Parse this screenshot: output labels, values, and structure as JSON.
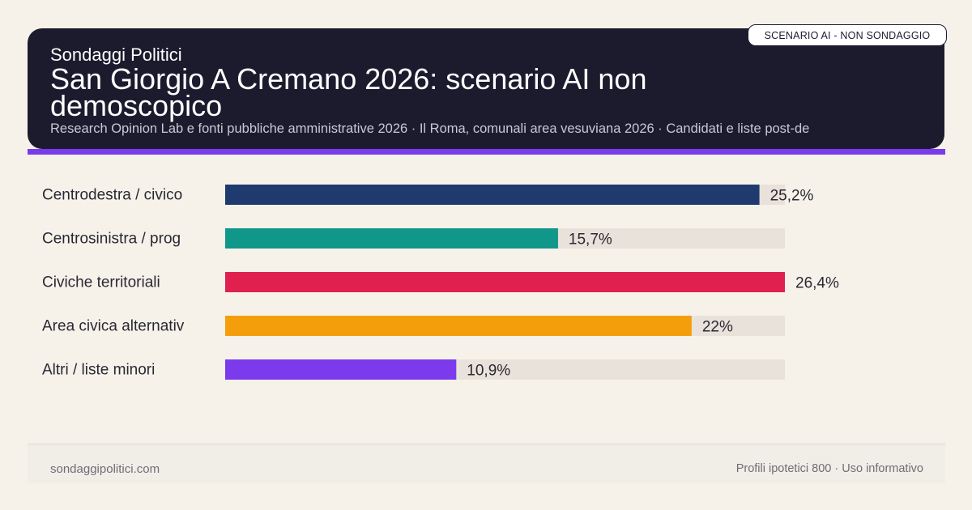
{
  "header": {
    "brand": "Sondaggi Politici",
    "title": "San Giorgio A Cremano 2026: scenario AI non demoscopico",
    "subtitle": "Research Opinion Lab e fonti pubbliche amministrative 2026 · Il Roma, comunali area vesuviana 2026 · Candidati e liste post-de",
    "badge": "SCENARIO AI - NON SONDAGGIO"
  },
  "colors": {
    "header_bg": "#1c1b2e",
    "accent": "#7c3aed",
    "page_bg": "#f6f2ea",
    "track": "#e8e2da"
  },
  "chart_data": {
    "type": "bar",
    "orientation": "horizontal",
    "categories": [
      "Centrodestra / civico",
      "Centrosinistra / prog",
      "Civiche territoriali",
      "Area civica alternativ",
      "Altri / liste minori"
    ],
    "values": [
      25.2,
      15.7,
      26.4,
      22,
      10.9
    ],
    "value_labels": [
      "25,2%",
      "15,7%",
      "26,4%",
      "22%",
      "10,9%"
    ],
    "colors": [
      "#1e3a6e",
      "#11968a",
      "#e0204e",
      "#f59e0b",
      "#7c3aed"
    ],
    "xlim": [
      0,
      26.4
    ],
    "grid": false,
    "title": "",
    "xlabel": "",
    "ylabel": ""
  },
  "footer": {
    "left": "sondaggipolitici.com",
    "right": "Profili ipotetici 800 · Uso informativo"
  }
}
